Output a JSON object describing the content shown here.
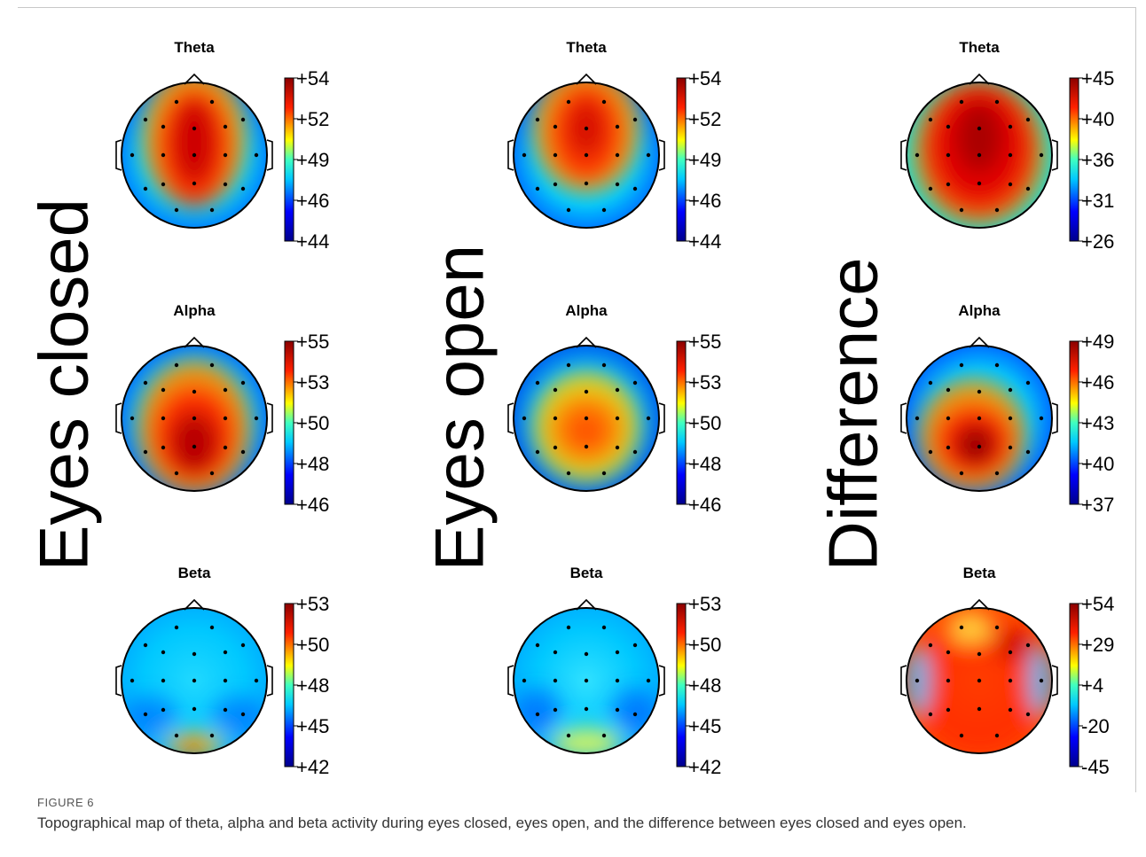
{
  "figure": {
    "label": "FIGURE 6",
    "caption": "Topographical map of theta, alpha and beta activity during eyes closed, eyes open, and the difference between eyes closed and eyes open."
  },
  "conditions": [
    "Eyes closed",
    "Eyes open",
    "Difference"
  ],
  "colormap": [
    "#00008b",
    "#0000ff",
    "#00ffff",
    "#ffff00",
    "#ff0000",
    "#8b0000"
  ],
  "panels": [
    {
      "condition": "Eyes closed",
      "band": "Theta",
      "ticks": [
        "+54",
        "+52",
        "+49",
        "+46",
        "+44"
      ]
    },
    {
      "condition": "Eyes open",
      "band": "Theta",
      "ticks": [
        "+54",
        "+52",
        "+49",
        "+46",
        "+44"
      ]
    },
    {
      "condition": "Difference",
      "band": "Theta",
      "ticks": [
        "+45",
        "+40",
        "+36",
        "+31",
        "+26"
      ]
    },
    {
      "condition": "Eyes closed",
      "band": "Alpha",
      "ticks": [
        "+55",
        "+53",
        "+50",
        "+48",
        "+46"
      ]
    },
    {
      "condition": "Eyes open",
      "band": "Alpha",
      "ticks": [
        "+55",
        "+53",
        "+50",
        "+48",
        "+46"
      ]
    },
    {
      "condition": "Difference",
      "band": "Alpha",
      "ticks": [
        "+49",
        "+46",
        "+43",
        "+40",
        "+37"
      ]
    },
    {
      "condition": "Eyes closed",
      "band": "Beta",
      "ticks": [
        "+53",
        "+50",
        "+48",
        "+45",
        "+42"
      ]
    },
    {
      "condition": "Eyes open",
      "band": "Beta",
      "ticks": [
        "+53",
        "+50",
        "+48",
        "+45",
        "+42"
      ]
    },
    {
      "condition": "Difference",
      "band": "Beta",
      "ticks": [
        "+54",
        "+29",
        "+4",
        "-20",
        "-45"
      ]
    }
  ]
}
